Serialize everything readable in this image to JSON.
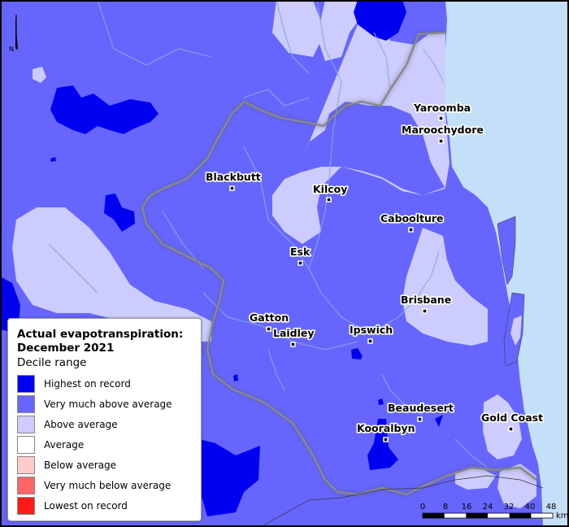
{
  "legend": {
    "title_line1": "Actual evapotranspiration:",
    "title_line2": "December 2021",
    "subtitle": "Decile range",
    "items": [
      {
        "label": "Highest on record",
        "color": "#0000f0"
      },
      {
        "label": "Very much above average",
        "color": "#6666ff"
      },
      {
        "label": "Above average",
        "color": "#ccccff"
      },
      {
        "label": "Average",
        "color": "#ffffff"
      },
      {
        "label": "Below average",
        "color": "#ffcccc"
      },
      {
        "label": "Very much below average",
        "color": "#ff6666"
      },
      {
        "label": "Lowest on record",
        "color": "#ff1a1a"
      }
    ]
  },
  "towns": [
    {
      "name": "Yaroomba"
    },
    {
      "name": "Maroochydore"
    },
    {
      "name": "Blackbutt"
    },
    {
      "name": "Kilcoy"
    },
    {
      "name": "Caboolture"
    },
    {
      "name": "Esk"
    },
    {
      "name": "Brisbane"
    },
    {
      "name": "Gatton"
    },
    {
      "name": "Laidley"
    },
    {
      "name": "Ipswich"
    },
    {
      "name": "Beaudesert"
    },
    {
      "name": "Gold Coast"
    },
    {
      "name": "Kooralbyn"
    }
  ],
  "north_arrow": {
    "label": "N"
  },
  "scale_bar": {
    "ticks": [
      "0",
      "8",
      "16",
      "24",
      "32",
      "40",
      "48"
    ],
    "unit": "km"
  },
  "colors": {
    "ocean": "#c4e0f8",
    "river": "#8aa8d8",
    "boundary": "#888888"
  }
}
